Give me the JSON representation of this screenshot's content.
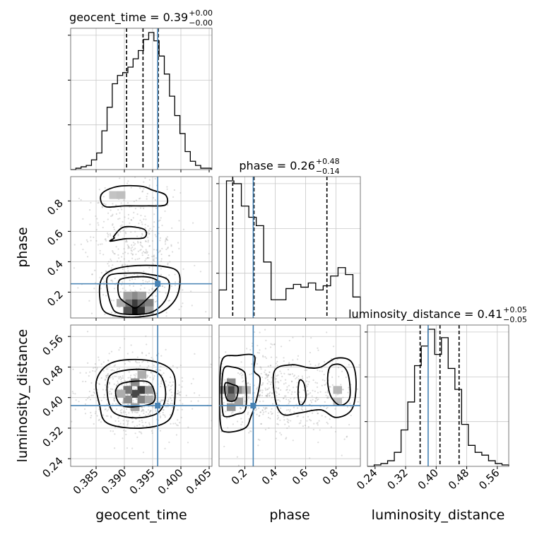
{
  "chart_data": {
    "type": "corner",
    "parameters": [
      "geocent_time",
      "phase",
      "luminosity_distance"
    ],
    "axis_labels": [
      "geocent_time",
      "phase",
      "luminosity_distance"
    ],
    "ranges": [
      [
        0.3805,
        0.4055
      ],
      [
        0.03,
        0.96
      ],
      [
        0.22,
        0.59
      ]
    ],
    "tick_labels": {
      "geocent_time": [
        "0.385",
        "0.390",
        "0.395",
        "0.400",
        "0.405"
      ],
      "phase": [
        "0.2",
        "0.4",
        "0.6",
        "0.8"
      ],
      "luminosity_distance": [
        "0.24",
        "0.32",
        "0.40",
        "0.48",
        "0.56"
      ]
    },
    "ticks": {
      "geocent_time": [
        0.385,
        0.39,
        0.395,
        0.4,
        0.405
      ],
      "phase": [
        0.2,
        0.4,
        0.6,
        0.8
      ],
      "luminosity_distance": [
        0.24,
        0.32,
        0.4,
        0.48,
        0.56
      ]
    },
    "titles": [
      {
        "param": "geocent_time",
        "text": "geocent_time = 0.39",
        "sup": "+0.00",
        "sub": "−0.00"
      },
      {
        "param": "phase",
        "text": "phase = 0.26",
        "sup": "+0.48",
        "sub": "−0.14"
      },
      {
        "param": "luminosity_distance",
        "text": "luminosity_distance = 0.41",
        "sup": "+0.05",
        "sub": "−0.05"
      }
    ],
    "truths": [
      0.3959,
      0.255,
      0.379
    ],
    "quantiles": {
      "geocent_time": [
        0.3904,
        0.3933,
        0.396
      ],
      "phase": [
        0.12,
        0.26,
        0.74
      ],
      "luminosity_distance": [
        0.358,
        0.41,
        0.46
      ]
    },
    "histograms": {
      "geocent_time": {
        "edges": [
          0.3805,
          0.40535
        ],
        "counts": [
          0,
          1,
          2,
          3,
          7,
          12,
          28,
          45,
          62,
          68,
          70,
          74,
          80,
          86,
          94,
          99,
          93,
          82,
          69,
          53,
          39,
          26,
          13,
          6,
          3,
          1,
          1
        ]
      },
      "phase": {
        "edges": [
          0.03,
          0.96
        ],
        "counts": [
          20,
          98,
          96,
          80,
          72,
          66,
          40,
          13,
          13,
          21,
          24,
          22,
          25,
          20,
          23,
          30,
          36,
          31,
          15
        ]
      },
      "luminosity_distance": {
        "edges": [
          0.22,
          0.59
        ],
        "counts": [
          0,
          1,
          2,
          4,
          10,
          26,
          46,
          72,
          86,
          98,
          80,
          92,
          70,
          55,
          30,
          15,
          10,
          8,
          4,
          2,
          1
        ]
      }
    },
    "pairs": [
      {
        "x": "geocent_time",
        "y": "phase",
        "contours": [
          [
            [
              0.3898,
              0.2903
            ],
            [
              0.394,
              0.3
            ],
            [
              0.3962,
              0.2613
            ],
            [
              0.395,
              0.1935
            ],
            [
              0.3923,
              0.1
            ],
            [
              0.391,
              0.1129
            ],
            [
              0.3892,
              0.1645
            ],
            [
              0.3889,
              0.2516
            ]
          ],
          [
            [
              0.3875,
              0.3129
            ],
            [
              0.3915,
              0.3258
            ],
            [
              0.394,
              0.3194
            ],
            [
              0.3977,
              0.2806
            ],
            [
              0.3975,
              0.1645
            ],
            [
              0.3955,
              0.0806
            ],
            [
              0.393,
              0.0548
            ],
            [
              0.389,
              0.0613
            ],
            [
              0.3877,
              0.1129
            ],
            [
              0.3869,
              0.2452
            ]
          ],
          [
            [
              0.3873,
              0.3355
            ],
            [
              0.391,
              0.371
            ],
            [
              0.3965,
              0.371
            ],
            [
              0.3996,
              0.3258
            ],
            [
              0.3993,
              0.171
            ],
            [
              0.3965,
              0.0677
            ],
            [
              0.392,
              0.0355
            ],
            [
              0.3879,
              0.0484
            ],
            [
              0.386,
              0.1
            ],
            [
              0.3857,
              0.2548
            ]
          ],
          [
            [
              0.3863,
              0.8581
            ],
            [
              0.389,
              0.8968
            ],
            [
              0.393,
              0.8968
            ],
            [
              0.395,
              0.871
            ],
            [
              0.3973,
              0.8387
            ],
            [
              0.3973,
              0.7742
            ],
            [
              0.394,
              0.7677
            ],
            [
              0.39,
              0.7677
            ],
            [
              0.3868,
              0.7613
            ],
            [
              0.3858,
              0.8065
            ]
          ],
          [
            [
              0.3882,
              0.571
            ],
            [
              0.39,
              0.629
            ],
            [
              0.3935,
              0.6129
            ],
            [
              0.3935,
              0.5581
            ],
            [
              0.3903,
              0.5516
            ],
            [
              0.3875,
              0.5355
            ],
            [
              0.3882,
              0.5548
            ]
          ]
        ],
        "pixels": [
          {
            "x": 0.3919,
            "y": 0.0806,
            "v": 1.0
          },
          {
            "x": 0.3931,
            "y": 0.0806,
            "v": 0.85
          },
          {
            "x": 0.3906,
            "y": 0.0806,
            "v": 0.7
          },
          {
            "x": 0.3919,
            "y": 0.129,
            "v": 0.8
          },
          {
            "x": 0.3931,
            "y": 0.129,
            "v": 0.6
          },
          {
            "x": 0.3906,
            "y": 0.129,
            "v": 0.55
          },
          {
            "x": 0.3944,
            "y": 0.129,
            "v": 0.5
          },
          {
            "x": 0.3919,
            "y": 0.1774,
            "v": 0.45
          },
          {
            "x": 0.3906,
            "y": 0.1774,
            "v": 0.35
          },
          {
            "x": 0.3931,
            "y": 0.1774,
            "v": 0.35
          },
          {
            "x": 0.3894,
            "y": 0.129,
            "v": 0.3
          },
          {
            "x": 0.3944,
            "y": 0.0806,
            "v": 0.35
          },
          {
            "x": 0.3881,
            "y": 0.8387,
            "v": 0.2
          },
          {
            "x": 0.3894,
            "y": 0.8387,
            "v": 0.22
          }
        ],
        "scatter_seed": 3,
        "scatter_n": 600
      },
      {
        "x": "geocent_time",
        "y": "luminosity_distance",
        "contours": [
          [
            [
              0.39,
              0.439
            ],
            [
              0.394,
              0.442
            ],
            [
              0.3953,
              0.416
            ],
            [
              0.395,
              0.386
            ],
            [
              0.3918,
              0.376
            ],
            [
              0.3896,
              0.379
            ],
            [
              0.3886,
              0.399
            ],
            [
              0.3886,
              0.424
            ]
          ],
          [
            [
              0.3881,
              0.464
            ],
            [
              0.3925,
              0.474
            ],
            [
              0.3962,
              0.461
            ],
            [
              0.3973,
              0.407
            ],
            [
              0.396,
              0.361
            ],
            [
              0.3922,
              0.347
            ],
            [
              0.3884,
              0.358
            ],
            [
              0.3872,
              0.39
            ],
            [
              0.387,
              0.437
            ]
          ],
          [
            [
              0.3879,
              0.492
            ],
            [
              0.394,
              0.498
            ],
            [
              0.3983,
              0.472
            ],
            [
              0.399,
              0.414
            ],
            [
              0.3979,
              0.342
            ],
            [
              0.393,
              0.32
            ],
            [
              0.387,
              0.333
            ],
            [
              0.3856,
              0.382
            ],
            [
              0.3851,
              0.447
            ]
          ]
        ],
        "pixels": [
          {
            "x": 0.3931,
            "y": 0.42,
            "v": 0.8
          },
          {
            "x": 0.3919,
            "y": 0.41,
            "v": 0.75
          },
          {
            "x": 0.3906,
            "y": 0.42,
            "v": 0.55
          },
          {
            "x": 0.3931,
            "y": 0.395,
            "v": 0.5
          },
          {
            "x": 0.3919,
            "y": 0.44,
            "v": 0.45
          },
          {
            "x": 0.3906,
            "y": 0.395,
            "v": 0.45
          },
          {
            "x": 0.3944,
            "y": 0.42,
            "v": 0.4
          },
          {
            "x": 0.3919,
            "y": 0.375,
            "v": 0.35
          },
          {
            "x": 0.3931,
            "y": 0.46,
            "v": 0.3
          },
          {
            "x": 0.3944,
            "y": 0.395,
            "v": 0.3
          },
          {
            "x": 0.3894,
            "y": 0.41,
            "v": 0.3
          }
        ],
        "scatter_seed": 7,
        "scatter_n": 650
      },
      {
        "x": "phase",
        "y": "luminosity_distance",
        "contours": [
          [
            [
              0.072,
              0.438
            ],
            [
              0.12,
              0.434
            ],
            [
              0.155,
              0.426
            ],
            [
              0.14,
              0.395
            ],
            [
              0.09,
              0.392
            ],
            [
              0.07,
              0.412
            ]
          ],
          [
            [
              0.062,
              0.476
            ],
            [
              0.12,
              0.48
            ],
            [
              0.185,
              0.471
            ],
            [
              0.205,
              0.452
            ],
            [
              0.205,
              0.371
            ],
            [
              0.14,
              0.356
            ],
            [
              0.08,
              0.35
            ],
            [
              0.055,
              0.36
            ],
            [
              0.048,
              0.421
            ]
          ],
          [
            [
              0.055,
              0.502
            ],
            [
              0.15,
              0.51
            ],
            [
              0.26,
              0.51
            ],
            [
              0.26,
              0.47
            ],
            [
              0.3,
              0.45
            ],
            [
              0.28,
              0.4
            ],
            [
              0.24,
              0.35
            ],
            [
              0.2,
              0.32
            ],
            [
              0.08,
              0.31
            ],
            [
              0.04,
              0.33
            ],
            [
              0.035,
              0.433
            ]
          ],
          [
            [
              0.395,
              0.47
            ],
            [
              0.51,
              0.486
            ],
            [
              0.62,
              0.478
            ],
            [
              0.7,
              0.48
            ],
            [
              0.8,
              0.503
            ],
            [
              0.9,
              0.494
            ],
            [
              0.932,
              0.44
            ],
            [
              0.905,
              0.37
            ],
            [
              0.8,
              0.348
            ],
            [
              0.7,
              0.368
            ],
            [
              0.56,
              0.36
            ],
            [
              0.45,
              0.356
            ],
            [
              0.4,
              0.395
            ]
          ],
          [
            [
              0.56,
              0.445
            ],
            [
              0.59,
              0.436
            ],
            [
              0.6,
              0.398
            ],
            [
              0.565,
              0.38
            ],
            [
              0.55,
              0.41
            ]
          ],
          [
            [
              0.76,
              0.48
            ],
            [
              0.83,
              0.486
            ],
            [
              0.88,
              0.46
            ],
            [
              0.89,
              0.4
            ],
            [
              0.83,
              0.38
            ],
            [
              0.77,
              0.4
            ],
            [
              0.745,
              0.44
            ]
          ]
        ],
        "pixels": [
          {
            "x": 0.11,
            "y": 0.42,
            "v": 0.75
          },
          {
            "x": 0.11,
            "y": 0.4,
            "v": 0.55
          },
          {
            "x": 0.16,
            "y": 0.42,
            "v": 0.45
          },
          {
            "x": 0.11,
            "y": 0.44,
            "v": 0.45
          },
          {
            "x": 0.06,
            "y": 0.42,
            "v": 0.4
          },
          {
            "x": 0.11,
            "y": 0.375,
            "v": 0.4
          },
          {
            "x": 0.16,
            "y": 0.39,
            "v": 0.35
          },
          {
            "x": 0.21,
            "y": 0.42,
            "v": 0.25
          },
          {
            "x": 0.81,
            "y": 0.42,
            "v": 0.25
          },
          {
            "x": 0.81,
            "y": 0.39,
            "v": 0.2
          }
        ],
        "scatter_seed": 11,
        "scatter_n": 650
      }
    ],
    "colors": {
      "truth": "#4682b4",
      "line": "#000000",
      "grid": "#c8c8c8",
      "scatter": "#9a9a9a"
    }
  }
}
